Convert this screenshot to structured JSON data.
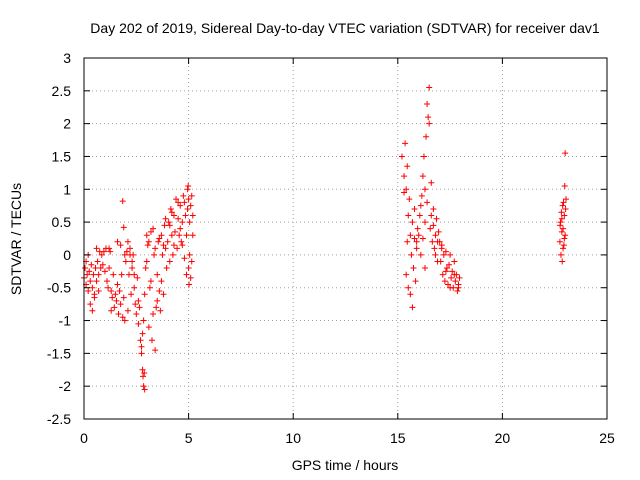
{
  "chart_data": {
    "type": "scatter",
    "title": "Day 202 of 2019, Sidereal Day-to-day VTEC variation (SDTVAR) for receiver dav1",
    "xlabel": "GPS time / hours",
    "ylabel": "SDTVAR / TECUs",
    "xlim": [
      0,
      25
    ],
    "ylim": [
      -2.5,
      3
    ],
    "xticks": [
      0,
      5,
      10,
      15,
      20,
      25
    ],
    "xtick_labels": [
      "0",
      "5",
      "10",
      "15",
      "20",
      "25"
    ],
    "yticks": [
      -2.5,
      -2,
      -1.5,
      -1,
      -0.5,
      0,
      0.5,
      1,
      1.5,
      2,
      2.5,
      3
    ],
    "ytick_labels": [
      "-2.5",
      "-2",
      "-1.5",
      "-1",
      "-0.5",
      "0",
      "0.5",
      "1",
      "1.5",
      "2",
      "2.5",
      "3"
    ],
    "grid": true,
    "marker": "+",
    "marker_color": "#ff0000",
    "series": [
      {
        "name": "dav1",
        "points": [
          [
            0.0,
            -0.35
          ],
          [
            0.05,
            -0.2
          ],
          [
            0.1,
            -0.45
          ],
          [
            0.15,
            -0.3
          ],
          [
            0.2,
            -0.55
          ],
          [
            0.25,
            -0.25
          ],
          [
            0.3,
            -0.4
          ],
          [
            0.35,
            -0.15
          ],
          [
            0.4,
            -0.5
          ],
          [
            0.45,
            -0.3
          ],
          [
            0.5,
            -0.65
          ],
          [
            0.55,
            -0.2
          ],
          [
            0.6,
            -0.4
          ],
          [
            0.65,
            -0.1
          ],
          [
            0.7,
            -0.3
          ],
          [
            0.75,
            0.05
          ],
          [
            0.8,
            -0.2
          ],
          [
            0.85,
            0.0
          ],
          [
            0.9,
            -0.15
          ],
          [
            0.95,
            0.05
          ],
          [
            0.3,
            -0.75
          ],
          [
            0.4,
            -0.85
          ],
          [
            0.5,
            -0.6
          ],
          [
            0.7,
            -0.55
          ],
          [
            0.2,
            0.0
          ],
          [
            0.1,
            -0.1
          ],
          [
            0.6,
            0.1
          ],
          [
            1.0,
            -0.25
          ],
          [
            1.05,
            0.1
          ],
          [
            1.1,
            -0.4
          ],
          [
            1.15,
            -0.5
          ],
          [
            1.2,
            -0.2
          ],
          [
            1.25,
            0.05
          ],
          [
            1.3,
            -0.55
          ],
          [
            1.35,
            -0.65
          ],
          [
            1.4,
            -0.3
          ],
          [
            1.45,
            -0.8
          ],
          [
            1.5,
            -0.6
          ],
          [
            1.55,
            -0.7
          ],
          [
            1.6,
            -0.45
          ],
          [
            1.65,
            -0.9
          ],
          [
            1.7,
            -0.55
          ],
          [
            1.75,
            -0.75
          ],
          [
            1.8,
            -0.3
          ],
          [
            1.85,
            -0.95
          ],
          [
            1.9,
            -0.65
          ],
          [
            1.95,
            -1.0
          ],
          [
            1.2,
            0.1
          ],
          [
            1.3,
            -0.85
          ],
          [
            1.6,
            0.2
          ],
          [
            1.75,
            0.15
          ],
          [
            1.85,
            0.82
          ],
          [
            1.9,
            0.42
          ],
          [
            1.95,
            0.0
          ],
          [
            2.0,
            -0.1
          ],
          [
            2.05,
            0.05
          ],
          [
            2.1,
            -0.85
          ],
          [
            2.15,
            -0.3
          ],
          [
            2.2,
            0.1
          ],
          [
            2.25,
            -0.6
          ],
          [
            2.3,
            -0.2
          ],
          [
            2.35,
            0.0
          ],
          [
            2.4,
            -0.5
          ],
          [
            2.45,
            -0.75
          ],
          [
            2.5,
            -0.9
          ],
          [
            2.55,
            -0.35
          ],
          [
            2.6,
            -1.05
          ],
          [
            2.65,
            -0.8
          ],
          [
            2.7,
            -1.3
          ],
          [
            2.75,
            -1.4
          ],
          [
            2.8,
            -1.2
          ],
          [
            2.85,
            -1.0
          ],
          [
            2.9,
            -0.6
          ],
          [
            2.95,
            -0.2
          ],
          [
            2.1,
            0.2
          ],
          [
            2.2,
            0.0
          ],
          [
            2.3,
            -0.1
          ],
          [
            2.4,
            -0.3
          ],
          [
            2.6,
            -0.7
          ],
          [
            2.8,
            -1.75
          ],
          [
            2.82,
            -1.85
          ],
          [
            2.85,
            -2.0
          ],
          [
            2.88,
            -1.8
          ],
          [
            2.9,
            -2.05
          ],
          [
            2.75,
            -1.5
          ],
          [
            3.0,
            -0.1
          ],
          [
            3.05,
            0.15
          ],
          [
            3.1,
            -1.1
          ],
          [
            3.15,
            -0.5
          ],
          [
            3.2,
            0.35
          ],
          [
            3.25,
            -1.3
          ],
          [
            3.3,
            -0.9
          ],
          [
            3.35,
            0.0
          ],
          [
            3.4,
            -1.45
          ],
          [
            3.45,
            -0.8
          ],
          [
            3.5,
            -0.3
          ],
          [
            3.55,
            0.2
          ],
          [
            3.6,
            -0.55
          ],
          [
            3.65,
            -0.85
          ],
          [
            3.7,
            0.3
          ],
          [
            3.75,
            0.0
          ],
          [
            3.8,
            -0.6
          ],
          [
            3.85,
            0.45
          ],
          [
            3.9,
            0.1
          ],
          [
            3.95,
            -0.2
          ],
          [
            3.0,
            0.3
          ],
          [
            3.1,
            0.2
          ],
          [
            3.2,
            -0.4
          ],
          [
            3.3,
            0.4
          ],
          [
            3.4,
            0.1
          ],
          [
            3.5,
            -0.7
          ],
          [
            3.6,
            0.25
          ],
          [
            3.7,
            -0.4
          ],
          [
            3.8,
            0.15
          ],
          [
            3.9,
            0.55
          ],
          [
            4.0,
            0.2
          ],
          [
            4.05,
            0.5
          ],
          [
            4.1,
            -0.1
          ],
          [
            4.15,
            0.7
          ],
          [
            4.2,
            0.3
          ],
          [
            4.25,
            0.0
          ],
          [
            4.3,
            0.6
          ],
          [
            4.35,
            0.35
          ],
          [
            4.4,
            0.85
          ],
          [
            4.45,
            0.1
          ],
          [
            4.5,
            0.55
          ],
          [
            4.55,
            0.3
          ],
          [
            4.6,
            0.75
          ],
          [
            4.65,
            0.2
          ],
          [
            4.7,
            0.5
          ],
          [
            4.75,
            0.9
          ],
          [
            4.8,
            -0.05
          ],
          [
            4.85,
            0.6
          ],
          [
            4.9,
            0.3
          ],
          [
            4.95,
            1.0
          ],
          [
            4.1,
            0.45
          ],
          [
            4.2,
            0.65
          ],
          [
            4.3,
            0.15
          ],
          [
            4.5,
            0.8
          ],
          [
            4.6,
            0.4
          ],
          [
            4.7,
            0.15
          ],
          [
            4.8,
            0.8
          ],
          [
            4.9,
            -0.3
          ],
          [
            4.95,
            0.7
          ],
          [
            5.0,
            0.85
          ],
          [
            5.05,
            0.5
          ],
          [
            5.1,
            -0.35
          ],
          [
            5.15,
            0.9
          ],
          [
            5.2,
            0.6
          ],
          [
            5.0,
            -0.2
          ],
          [
            5.05,
            0.0
          ],
          [
            5.1,
            0.75
          ],
          [
            5.15,
            -0.1
          ],
          [
            5.2,
            0.3
          ],
          [
            4.98,
            1.05
          ],
          [
            5.02,
            -0.45
          ],
          [
            15.2,
            1.5
          ],
          [
            15.3,
            1.2
          ],
          [
            15.35,
            1.7
          ],
          [
            15.4,
            1.0
          ],
          [
            15.45,
            1.35
          ],
          [
            15.5,
            0.6
          ],
          [
            15.55,
            0.85
          ],
          [
            15.6,
            0.3
          ],
          [
            15.65,
            0.0
          ],
          [
            15.7,
            0.5
          ],
          [
            15.75,
            -0.2
          ],
          [
            15.8,
            0.25
          ],
          [
            15.85,
            -0.4
          ],
          [
            15.9,
            0.1
          ],
          [
            15.95,
            0.4
          ],
          [
            15.4,
            -0.3
          ],
          [
            15.5,
            -0.5
          ],
          [
            15.6,
            -0.6
          ],
          [
            15.7,
            -0.8
          ],
          [
            15.8,
            0.7
          ],
          [
            15.9,
            0.2
          ],
          [
            15.3,
            0.95
          ],
          [
            15.45,
            0.2
          ],
          [
            16.0,
            0.3
          ],
          [
            16.05,
            0.6
          ],
          [
            16.1,
            0.0
          ],
          [
            16.15,
            0.9
          ],
          [
            16.2,
            1.2
          ],
          [
            16.25,
            1.5
          ],
          [
            16.3,
            0.5
          ],
          [
            16.35,
            1.8
          ],
          [
            16.4,
            2.3
          ],
          [
            16.45,
            2.1
          ],
          [
            16.5,
            2.55
          ],
          [
            16.55,
            0.4
          ],
          [
            16.6,
            1.1
          ],
          [
            16.65,
            0.2
          ],
          [
            16.7,
            0.7
          ],
          [
            16.75,
            0.1
          ],
          [
            16.8,
            0.3
          ],
          [
            16.85,
            0.55
          ],
          [
            16.9,
            -0.1
          ],
          [
            16.95,
            0.35
          ],
          [
            16.1,
            0.75
          ],
          [
            16.2,
            0.25
          ],
          [
            16.3,
            1.0
          ],
          [
            16.4,
            0.8
          ],
          [
            16.5,
            2.0
          ],
          [
            16.6,
            0.6
          ],
          [
            16.7,
            0.45
          ],
          [
            16.8,
            0.0
          ],
          [
            16.9,
            0.2
          ],
          [
            16.3,
            -0.2
          ],
          [
            17.0,
            0.2
          ],
          [
            17.05,
            -0.1
          ],
          [
            17.1,
            0.1
          ],
          [
            17.15,
            -0.3
          ],
          [
            17.2,
            0.0
          ],
          [
            17.25,
            -0.4
          ],
          [
            17.3,
            0.05
          ],
          [
            17.35,
            -0.2
          ],
          [
            17.4,
            -0.45
          ],
          [
            17.45,
            -0.15
          ],
          [
            17.5,
            0.0
          ],
          [
            17.55,
            -0.35
          ],
          [
            17.6,
            -0.25
          ],
          [
            17.65,
            -0.5
          ],
          [
            17.7,
            -0.1
          ],
          [
            17.75,
            -0.4
          ],
          [
            17.8,
            -0.3
          ],
          [
            17.85,
            -0.55
          ],
          [
            17.9,
            -0.45
          ],
          [
            17.95,
            -0.35
          ],
          [
            17.1,
            0.15
          ],
          [
            17.3,
            -0.25
          ],
          [
            17.5,
            -0.5
          ],
          [
            17.7,
            -0.3
          ],
          [
            17.9,
            -0.5
          ],
          [
            22.75,
            0.2
          ],
          [
            22.78,
            0.5
          ],
          [
            22.8,
            0.0
          ],
          [
            22.82,
            0.65
          ],
          [
            22.84,
            0.35
          ],
          [
            22.86,
            -0.1
          ],
          [
            22.88,
            0.75
          ],
          [
            22.9,
            0.4
          ],
          [
            22.92,
            0.8
          ],
          [
            22.94,
            0.15
          ],
          [
            22.96,
            0.6
          ],
          [
            22.98,
            1.05
          ],
          [
            23.0,
            0.3
          ],
          [
            23.02,
            0.7
          ],
          [
            23.04,
            0.85
          ],
          [
            22.76,
            0.45
          ],
          [
            22.84,
            0.55
          ],
          [
            22.9,
            0.1
          ],
          [
            22.96,
            0.25
          ],
          [
            23.0,
            1.55
          ]
        ]
      }
    ]
  }
}
